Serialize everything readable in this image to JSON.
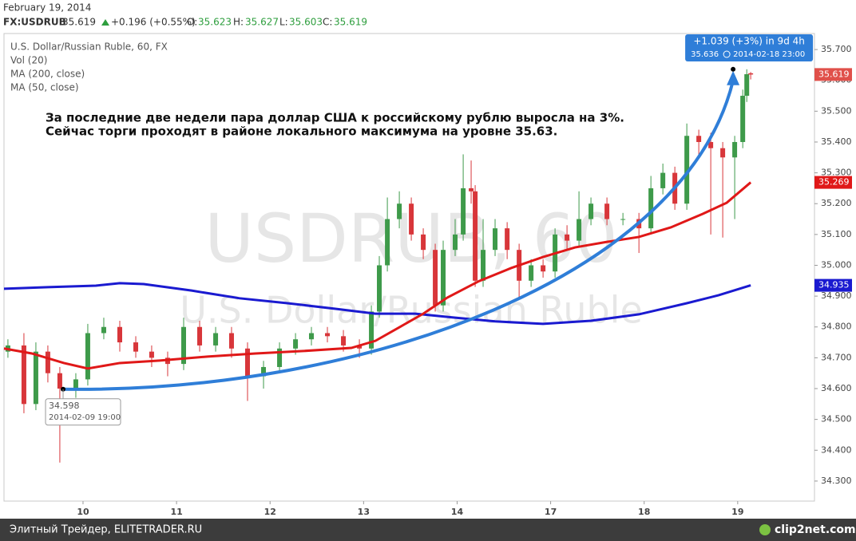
{
  "header": {
    "date": "February 19, 2014",
    "symbol": "FX:USDRUB",
    "last": "35.619",
    "change": "+0.196 (+0.55%)",
    "o_label": "O:",
    "open": "35.623",
    "h_label": "H:",
    "high": "35.627",
    "l_label": "L:",
    "low": "35.603",
    "c_label": "C:",
    "close": "35.619"
  },
  "footer": {
    "source": "Элитный Трейдер, ELITETRADER.RU",
    "logo": "clip2net.com"
  },
  "chart_data": {
    "type": "candlestick",
    "title": "U.S. Dollar/Russian Ruble, 60, FX",
    "vol_label": "Vol (20)",
    "watermark": "USDRUB, 60",
    "watermark_subtitle": "U.S. Dollar/Russian Ruble",
    "annotations": [
      "За последние две недели пара доллар США к российскому рублю выросла на 3%.",
      "Сейчас торги проходят в районе локального максимума на уровне 35.63."
    ],
    "xlim": [
      -0.845,
      7.821
    ],
    "ylim": [
      34.235,
      35.752
    ],
    "xticks": [
      {
        "value": 0,
        "label": "10"
      },
      {
        "value": 1,
        "label": "11"
      },
      {
        "value": 2,
        "label": "12"
      },
      {
        "value": 3,
        "label": "13"
      },
      {
        "value": 4,
        "label": "14"
      },
      {
        "value": 5,
        "label": "17"
      },
      {
        "value": 6,
        "label": "18"
      },
      {
        "value": 7,
        "label": "19"
      }
    ],
    "yticks": [
      {
        "value": 35.7,
        "label": "35.700"
      },
      {
        "value": 35.6,
        "label": "35.600"
      },
      {
        "value": 35.5,
        "label": "35.500"
      },
      {
        "value": 35.4,
        "label": "35.400"
      },
      {
        "value": 35.3,
        "label": "35.300"
      },
      {
        "value": 35.2,
        "label": "35.200"
      },
      {
        "value": 35.1,
        "label": "35.100"
      },
      {
        "value": 35.0,
        "label": "35.000"
      },
      {
        "value": 34.9,
        "label": "34.900"
      },
      {
        "value": 34.8,
        "label": "34.800"
      },
      {
        "value": 34.7,
        "label": "34.700"
      },
      {
        "value": 34.6,
        "label": "34.600"
      },
      {
        "value": 34.5,
        "label": "34.500"
      },
      {
        "value": 34.4,
        "label": "34.400"
      },
      {
        "value": 34.3,
        "label": "34.300"
      }
    ],
    "grid": false,
    "up_color": "#3e9a4a",
    "down_color": "#d8363a",
    "candles": {
      "x": [
        -0.803,
        -0.632,
        -0.504,
        -0.376,
        -0.248,
        -0.077,
        0.051,
        0.222,
        0.393,
        0.564,
        0.734,
        0.905,
        1.076,
        1.247,
        1.418,
        1.588,
        1.759,
        1.93,
        2.101,
        2.272,
        2.442,
        2.613,
        2.784,
        2.955,
        3.083,
        3.168,
        3.254,
        3.382,
        3.51,
        3.638,
        3.766,
        3.851,
        3.979,
        4.065,
        4.15,
        4.193,
        4.278,
        4.406,
        4.535,
        4.663,
        4.791,
        4.919,
        5.047,
        5.175,
        5.303,
        5.431,
        5.602,
        5.773,
        5.944,
        6.072,
        6.2,
        6.328,
        6.456,
        6.584,
        6.712,
        6.84,
        6.968,
        7.054,
        7.097,
        7.139
      ],
      "open": [
        34.72,
        34.74,
        34.55,
        34.72,
        34.65,
        34.6,
        34.63,
        34.78,
        34.8,
        34.75,
        34.72,
        34.7,
        34.68,
        34.8,
        34.74,
        34.78,
        34.73,
        34.64,
        34.67,
        34.73,
        34.76,
        34.78,
        34.77,
        34.74,
        34.73,
        34.85,
        35.0,
        35.15,
        35.2,
        35.1,
        35.05,
        34.87,
        35.05,
        35.1,
        35.25,
        35.24,
        34.95,
        35.05,
        35.12,
        35.05,
        34.95,
        35.0,
        34.98,
        35.1,
        35.08,
        35.15,
        35.2,
        35.15,
        35.15,
        35.12,
        35.25,
        35.3,
        35.2,
        35.42,
        35.4,
        35.38,
        35.35,
        35.4,
        35.55,
        35.623
      ],
      "high": [
        34.76,
        34.78,
        34.75,
        34.74,
        34.67,
        34.65,
        34.81,
        34.83,
        34.82,
        34.77,
        34.74,
        34.72,
        34.83,
        34.82,
        34.8,
        34.8,
        34.75,
        34.69,
        34.75,
        34.78,
        34.8,
        34.8,
        34.79,
        34.76,
        34.87,
        35.03,
        35.22,
        35.24,
        35.22,
        35.12,
        35.07,
        35.08,
        35.15,
        35.36,
        35.34,
        35.26,
        35.15,
        35.15,
        35.14,
        35.07,
        35.02,
        35.02,
        35.12,
        35.13,
        35.24,
        35.22,
        35.22,
        35.17,
        35.17,
        35.29,
        35.33,
        35.32,
        35.46,
        35.44,
        35.43,
        35.4,
        35.42,
        35.57,
        35.636,
        35.627
      ],
      "low": [
        34.7,
        34.52,
        34.53,
        34.62,
        34.36,
        34.57,
        34.61,
        34.76,
        34.72,
        34.7,
        34.67,
        34.64,
        34.66,
        34.72,
        34.72,
        34.7,
        34.56,
        34.6,
        34.65,
        34.71,
        34.74,
        34.75,
        34.72,
        34.7,
        34.71,
        34.83,
        34.98,
        35.12,
        35.08,
        35.02,
        34.85,
        34.85,
        35.03,
        35.08,
        35.2,
        34.93,
        34.93,
        35.03,
        35.02,
        34.89,
        34.93,
        34.96,
        34.96,
        35.05,
        35.06,
        35.13,
        35.13,
        35.13,
        35.04,
        35.1,
        35.23,
        35.18,
        35.18,
        35.35,
        35.1,
        35.09,
        35.15,
        35.38,
        35.53,
        35.603
      ],
      "close": [
        34.74,
        34.55,
        34.72,
        34.65,
        34.6,
        34.63,
        34.78,
        34.8,
        34.75,
        34.72,
        34.7,
        34.68,
        34.8,
        34.74,
        34.78,
        34.73,
        34.64,
        34.67,
        34.73,
        34.76,
        34.78,
        34.77,
        34.74,
        34.73,
        34.85,
        35.0,
        35.15,
        35.2,
        35.1,
        35.05,
        34.87,
        35.05,
        35.1,
        35.25,
        35.24,
        34.95,
        35.05,
        35.12,
        35.05,
        34.95,
        35.0,
        34.98,
        35.1,
        35.08,
        35.15,
        35.2,
        35.15,
        35.15,
        35.12,
        35.25,
        35.3,
        35.2,
        35.42,
        35.4,
        35.38,
        35.35,
        35.4,
        35.55,
        35.62,
        35.619
      ]
    },
    "series": [
      {
        "name": "MA (200, close)",
        "color": "#1a1ad0",
        "x": [
          -0.845,
          -0.376,
          0.137,
          0.393,
          0.649,
          1.161,
          1.674,
          2.186,
          2.699,
          3.126,
          3.553,
          3.98,
          4.406,
          4.919,
          5.431,
          5.944,
          6.456,
          6.797,
          7.139
        ],
        "values": [
          34.924,
          34.929,
          34.934,
          34.942,
          34.939,
          34.918,
          34.893,
          34.877,
          34.859,
          34.843,
          34.843,
          34.83,
          34.818,
          34.81,
          34.82,
          34.841,
          34.877,
          34.903,
          34.935
        ]
      },
      {
        "name": "MA (50, close)",
        "color": "#e01818",
        "x": [
          -0.845,
          -0.547,
          -0.205,
          0.051,
          0.393,
          0.82,
          1.332,
          1.845,
          2.357,
          2.869,
          3.126,
          3.382,
          3.638,
          3.894,
          4.236,
          4.577,
          4.919,
          5.261,
          5.602,
          5.944,
          6.285,
          6.627,
          6.883,
          7.139
        ],
        "values": [
          34.73,
          34.714,
          34.683,
          34.665,
          34.683,
          34.691,
          34.704,
          34.714,
          34.722,
          34.732,
          34.755,
          34.799,
          34.843,
          34.895,
          34.949,
          34.991,
          35.027,
          35.058,
          35.076,
          35.092,
          35.123,
          35.167,
          35.203,
          35.269
        ]
      }
    ],
    "price_tags": [
      {
        "value": 35.619,
        "color": "#e0504a"
      },
      {
        "value": 35.269,
        "color": "#e01818"
      },
      {
        "value": 34.935,
        "color": "#1a1ad0"
      }
    ],
    "measure": {
      "color": "#2f7ed8",
      "start": {
        "x": -0.213,
        "value": 34.598,
        "date": "2014-02-09 19:00"
      },
      "end": {
        "x": 6.951,
        "value": 35.636,
        "date": "2014-02-18 23:00"
      },
      "label": "+1.039 (+3%) in 9d 4h"
    }
  }
}
